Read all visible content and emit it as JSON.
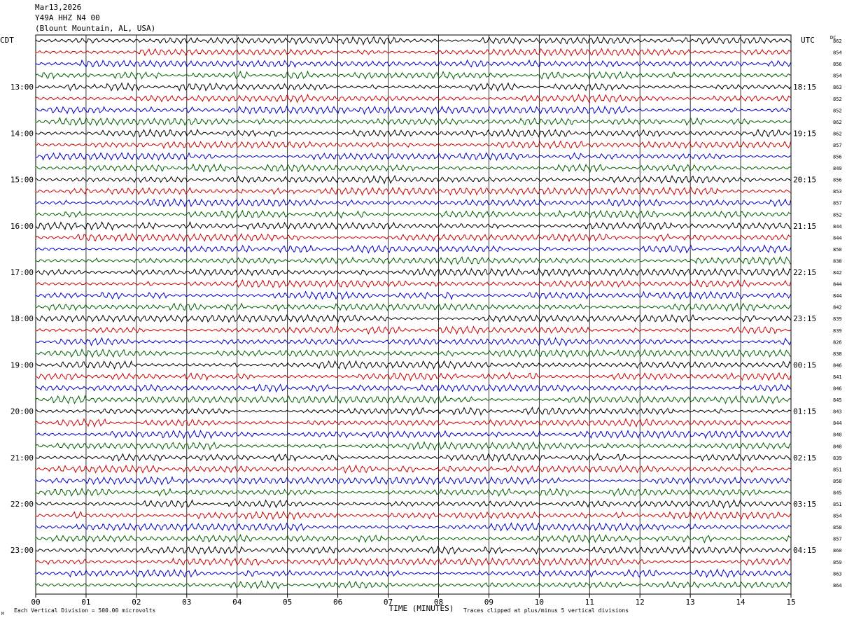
{
  "header": {
    "date": "Mar13,2026",
    "station": "Y49A HHZ N4 00",
    "location": "(Blount Mountain, AL, USA)"
  },
  "labels": {
    "left_tz": "CDT",
    "right_tz": "UTC",
    "dc": "DC",
    "xlabel": "TIME (MINUTES)",
    "footer_left": "Each Vertical Division =  500.00 microvolts",
    "footer_right": "Traces clipped at plus/minus 5 vertical divisions",
    "corner_mark": "M"
  },
  "colors": {
    "trace_cycle": [
      "#000000",
      "#d00000",
      "#0000cc",
      "#006000"
    ],
    "grid": "#000000",
    "background": "#ffffff"
  },
  "chart_data": {
    "type": "line",
    "title": "Mar13,2026 Y49A HHZ N4 00 (Blount Mountain, AL, USA)",
    "xlabel": "TIME (MINUTES)",
    "ylabel": "",
    "xlim": [
      0,
      15
    ],
    "x_ticks": [
      "00",
      "01",
      "02",
      "03",
      "04",
      "05",
      "06",
      "07",
      "08",
      "09",
      "10",
      "11",
      "12",
      "13",
      "14",
      "15"
    ],
    "traces_per_hour": 4,
    "trace_count": 48,
    "left_hour_labels": [
      "13:00",
      "14:00",
      "15:00",
      "16:00",
      "17:00",
      "18:00",
      "19:00",
      "20:00",
      "21:00",
      "22:00",
      "23:00"
    ],
    "right_hour_labels": [
      "18:15",
      "19:15",
      "20:15",
      "21:15",
      "22:15",
      "23:15",
      "00:15",
      "01:15",
      "02:15",
      "03:15",
      "04:15"
    ],
    "hour_label_first_trace_index": 4,
    "dc_offsets": [
      862,
      854,
      856,
      854,
      863,
      852,
      852,
      862,
      862,
      857,
      856,
      849,
      856,
      853,
      857,
      852,
      844,
      844,
      850,
      838,
      842,
      844,
      844,
      842,
      839,
      839,
      826,
      838,
      846,
      841,
      846,
      845,
      843,
      844,
      840,
      840,
      839,
      851,
      858,
      845,
      851,
      854,
      858,
      857,
      860,
      859,
      863,
      864
    ],
    "grid": true,
    "vertical_division_microvolts": 500.0,
    "clip_divisions": 5
  }
}
